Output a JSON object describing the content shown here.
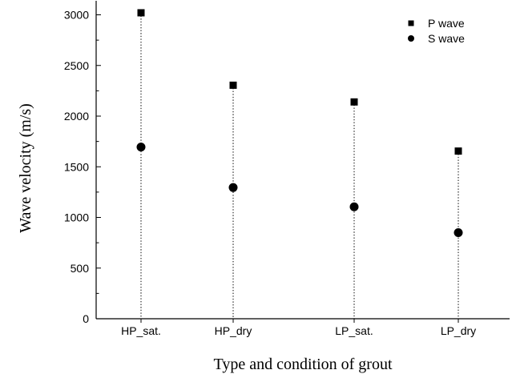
{
  "chart_data": {
    "type": "scatter",
    "categories": [
      "HP_sat.",
      "HP_dry",
      "LP_sat.",
      "LP_dry"
    ],
    "series": [
      {
        "name": "P wave",
        "marker": "square",
        "values": [
          3020,
          2305,
          2140,
          1655
        ]
      },
      {
        "name": "S wave",
        "marker": "circle",
        "values": [
          1695,
          1295,
          1105,
          850
        ]
      }
    ],
    "title": "",
    "xlabel": "Type and condition of grout",
    "ylabel": "Wave velocity (m/s)",
    "ylim": [
      0,
      3000
    ],
    "y_ticks": [
      0,
      500,
      1000,
      1500,
      2000,
      2500,
      3000
    ],
    "y_minor_step": 250,
    "dropline_to_axis": true,
    "grid": false,
    "legend_position": "top-right",
    "colors": {
      "marker": "#000000",
      "axis": "#000000",
      "dropline": "#000000"
    }
  }
}
